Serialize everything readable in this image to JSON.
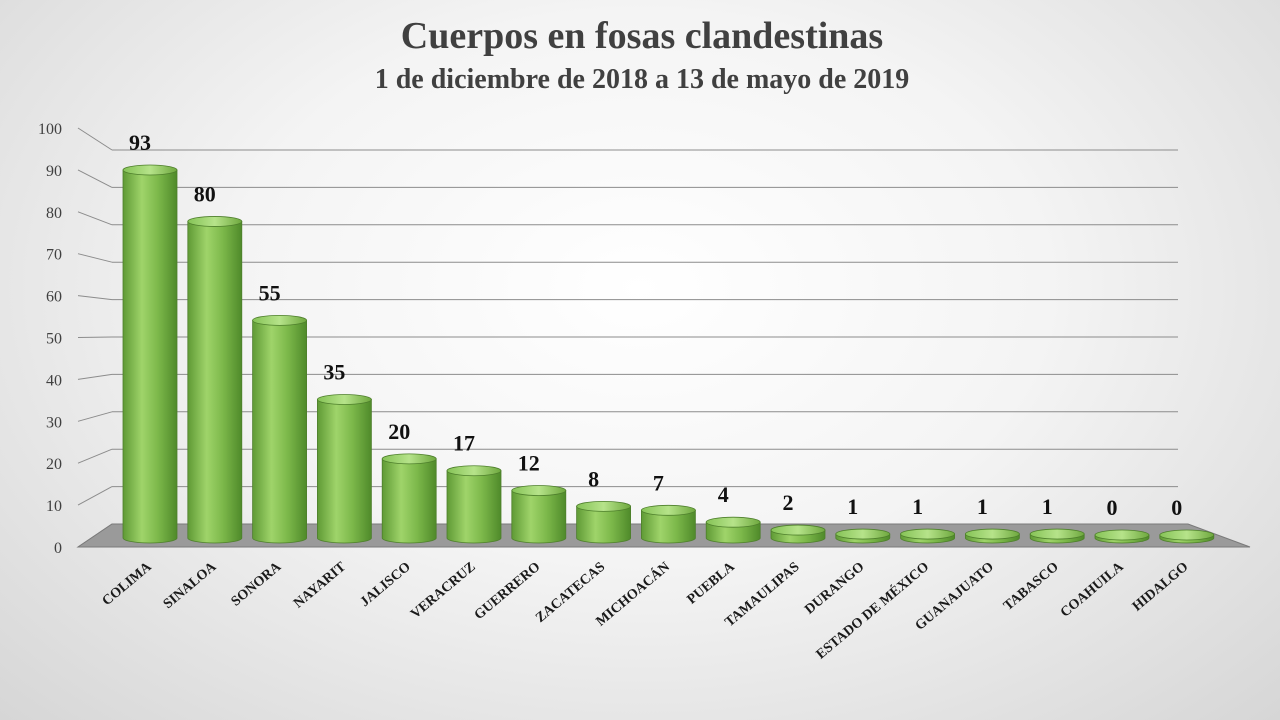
{
  "chart_data": {
    "type": "bar",
    "title": "Cuerpos en fosas clandestinas",
    "subtitle": "1 de diciembre de 2018 a  13 de mayo de 2019",
    "categories": [
      "COLIMA",
      "SINALOA",
      "SONORA",
      "NAYARIT",
      "JALISCO",
      "VERACRUZ",
      "GUERRERO",
      "ZACATECAS",
      "MICHOACÁN",
      "PUEBLA",
      "TAMAULIPAS",
      "DURANGO",
      "ESTADO DE MÉXICO",
      "GUANAJUATO",
      "TABASCO",
      "COAHUILA",
      "HIDALGO"
    ],
    "values": [
      93,
      80,
      55,
      35,
      20,
      17,
      12,
      8,
      7,
      4,
      2,
      1,
      1,
      1,
      1,
      0,
      0
    ],
    "ylim": [
      0,
      100
    ],
    "yticks": [
      0,
      10,
      20,
      30,
      40,
      50,
      60,
      70,
      80,
      90,
      100
    ],
    "grid": true,
    "bar_color": "#7cb84a",
    "data_labels": true
  }
}
